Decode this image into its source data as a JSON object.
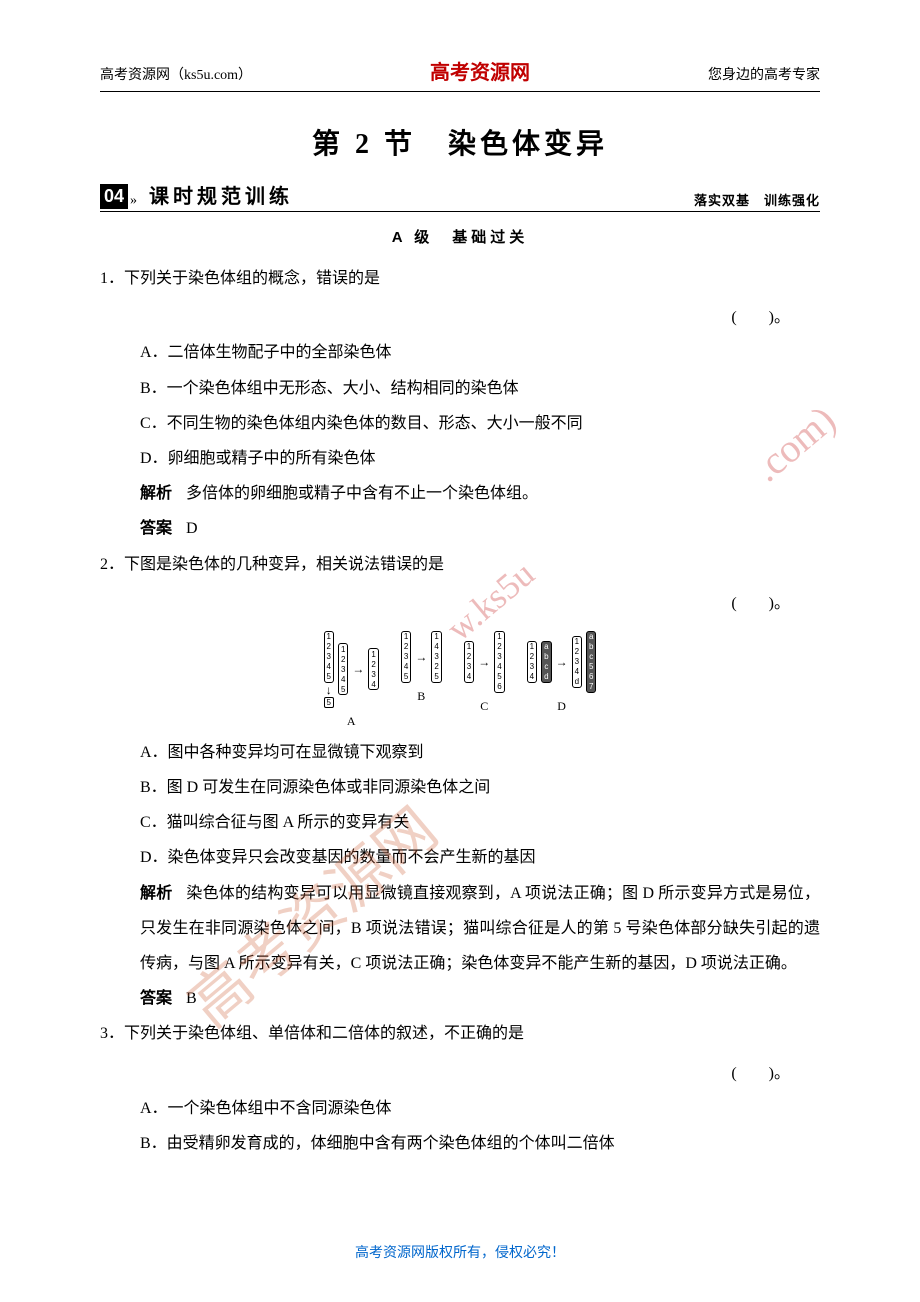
{
  "header": {
    "left": "高考资源网（ks5u.com）",
    "center": "高考资源网",
    "right": "您身边的高考专家"
  },
  "title": "第 2 节　染色体变异",
  "section": {
    "badge": "04",
    "arrows": "»",
    "title": "课时规范训练",
    "right": "落实双基　训练强化"
  },
  "level": "A 级　基础过关",
  "q1": {
    "num": "1．",
    "stem": "下列关于染色体组的概念，错误的是",
    "paren": "(　　)。",
    "opts": {
      "A": "A．二倍体生物配子中的全部染色体",
      "B": "B．一个染色体组中无形态、大小、结构相同的染色体",
      "C": "C．不同生物的染色体组内染色体的数目、形态、大小一般不同",
      "D": "D．卵细胞或精子中的所有染色体"
    },
    "explLabel": "解析",
    "expl": "多倍体的卵细胞或精子中含有不止一个染色体组。",
    "ansLabel": "答案",
    "ans": "D"
  },
  "q2": {
    "num": "2．",
    "stem": "下图是染色体的几种变异，相关说法错误的是",
    "paren": "(　　)。",
    "diagramLabels": {
      "A": "A",
      "B": "B",
      "C": "C",
      "D": "D"
    },
    "opts": {
      "A": "A．图中各种变异均可在显微镜下观察到",
      "B": "B．图 D 可发生在同源染色体或非同源染色体之间",
      "C": "C．猫叫综合征与图 A 所示的变异有关",
      "D": "D．染色体变异只会改变基因的数量而不会产生新的基因"
    },
    "explLabel": "解析",
    "expl": "染色体的结构变异可以用显微镜直接观察到，A 项说法正确；图 D 所示变异方式是易位，只发生在非同源染色体之间，B 项说法错误；猫叫综合征是人的第 5 号染色体部分缺失引起的遗传病，与图 A 所示变异有关，C 项说法正确；染色体变异不能产生新的基因，D 项说法正确。",
    "ansLabel": "答案",
    "ans": "B"
  },
  "q3": {
    "num": "3．",
    "stem": "下列关于染色体组、单倍体和二倍体的叙述，不正确的是",
    "paren": "(　　)。",
    "opts": {
      "A": "A．一个染色体组中不含同源染色体",
      "B": "B．由受精卵发育成的，体细胞中含有两个染色体组的个体叫二倍体"
    }
  },
  "footer": "高考资源网版权所有，侵权必究！",
  "watermark": {
    "text1": ".com)",
    "text2": "w.ks5u",
    "text3": "高考资源网"
  },
  "colors": {
    "headerCenter": "#c00000",
    "footer": "#0066cc",
    "watermark": "rgba(204,60,60,0.35)",
    "text": "#000000",
    "background": "#ffffff"
  }
}
